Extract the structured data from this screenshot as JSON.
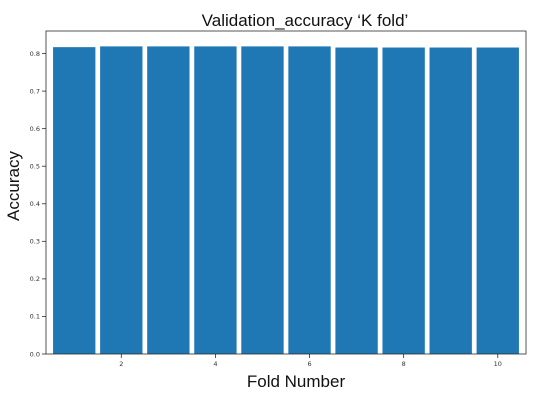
{
  "chart_data": {
    "type": "bar",
    "title": "Validation_accuracy ‘K fold’",
    "xlabel": "Fold Number",
    "ylabel": "Accuracy",
    "categories": [
      1,
      2,
      3,
      4,
      5,
      6,
      7,
      8,
      9,
      10
    ],
    "values": [
      0.817,
      0.819,
      0.819,
      0.819,
      0.819,
      0.819,
      0.816,
      0.816,
      0.816,
      0.816
    ],
    "xlim": [
      0.4,
      10.6
    ],
    "ylim": [
      0,
      0.86
    ],
    "xticks": [
      2,
      4,
      6,
      8,
      10
    ],
    "xtick_labels": [
      "2",
      "4",
      "6",
      "8",
      "10"
    ],
    "yticks": [
      0,
      0.1,
      0.2,
      0.3,
      0.4,
      0.5,
      0.6,
      0.7,
      0.8
    ],
    "ytick_labels": [
      "0.0",
      "0.1",
      "0.2",
      "0.3",
      "0.4",
      "0.5",
      "0.6",
      "0.7",
      "0.8"
    ],
    "bar_color": "#1f77b4",
    "grid": false,
    "legend": "none"
  }
}
